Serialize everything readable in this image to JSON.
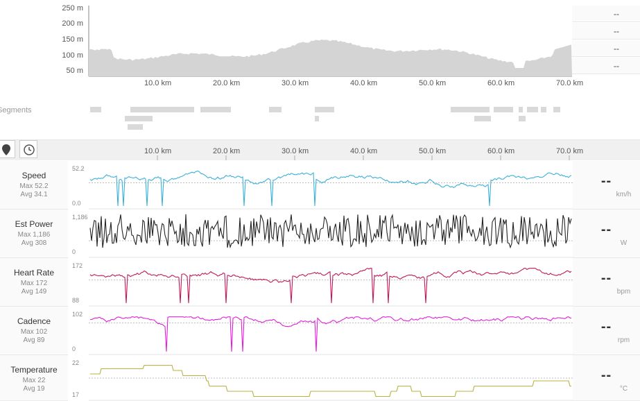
{
  "elevation": {
    "y_labels": [
      "250 m",
      "200 m",
      "150 m",
      "100 m",
      "50 m"
    ],
    "km_labels": [
      "10.0 km",
      "20.0 km",
      "30.0 km",
      "40.0 km",
      "50.0 km",
      "60.0 km",
      "70.0 km"
    ],
    "side_values": [
      "--",
      "--",
      "--",
      "--"
    ],
    "fill_color": "#d4d4d4"
  },
  "segments": {
    "label": "Segments",
    "bar_color": "#d9d9d9"
  },
  "toolbar": {
    "map_icon": "map-pin-icon",
    "clock_icon": "clock-icon",
    "km_labels": [
      "10.0 km",
      "20.0 km",
      "30.0 km",
      "40.0 km",
      "50.0 km",
      "60.0 km",
      "70.0 km"
    ]
  },
  "rows": [
    {
      "title": "Speed",
      "max": "Max 52.2",
      "avg": "Avg 34.1",
      "top": "52.2",
      "bottom": "0.0",
      "value": "--",
      "unit": "km/h",
      "color": "#3ab0d8"
    },
    {
      "title": "Est Power",
      "max": "Max 1,186",
      "avg": "Avg 308",
      "top": "1,186",
      "bottom": "0",
      "value": "--",
      "unit": "W",
      "color": "#222222"
    },
    {
      "title": "Heart Rate",
      "max": "Max 172",
      "avg": "Avg 149",
      "top": "172",
      "bottom": "88",
      "value": "--",
      "unit": "bpm",
      "color": "#c0185a"
    },
    {
      "title": "Cadence",
      "max": "Max 102",
      "avg": "Avg 89",
      "top": "102",
      "bottom": "0",
      "value": "--",
      "unit": "rpm",
      "color": "#e020d8"
    },
    {
      "title": "Temperature",
      "max": "Max 22",
      "avg": "Avg 19",
      "top": "22",
      "bottom": "17",
      "value": "--",
      "unit": "°C",
      "color": "#b8b040"
    }
  ]
}
